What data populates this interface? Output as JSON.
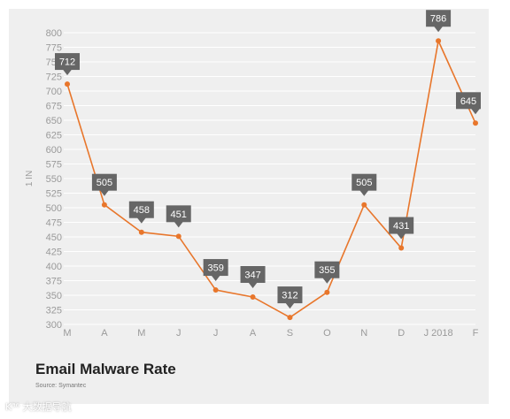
{
  "chart_data": {
    "type": "line",
    "title": "Email Malware Rate",
    "source": "Source: Symantec",
    "ylabel": "1 IN",
    "xlabel": "",
    "categories": [
      "M",
      "A",
      "M",
      "J",
      "J",
      "A",
      "S",
      "O",
      "N",
      "D",
      "J 2018",
      "F"
    ],
    "series": [
      {
        "values": [
          712,
          505,
          458,
          451,
          359,
          347,
          312,
          355,
          505,
          431,
          786,
          645
        ]
      }
    ],
    "data_labels": [
      "712",
      "505",
      "458",
      "451",
      "359",
      "347",
      "312",
      "355",
      "505",
      "431",
      "786",
      "645"
    ],
    "yticks": [
      "300",
      "325",
      "350",
      "375",
      "400",
      "425",
      "450",
      "475",
      "500",
      "525",
      "550",
      "575",
      "600",
      "625",
      "650",
      "675",
      "700",
      "725",
      "750",
      "775",
      "800"
    ],
    "ylim": [
      300,
      800
    ],
    "grid": true,
    "legend": "none",
    "colors": {
      "line": "#e8762b",
      "label_box": "#666666",
      "grid": "#ffffff",
      "background": "#efefef"
    }
  },
  "watermark": "K³⁶ 大数据导航"
}
